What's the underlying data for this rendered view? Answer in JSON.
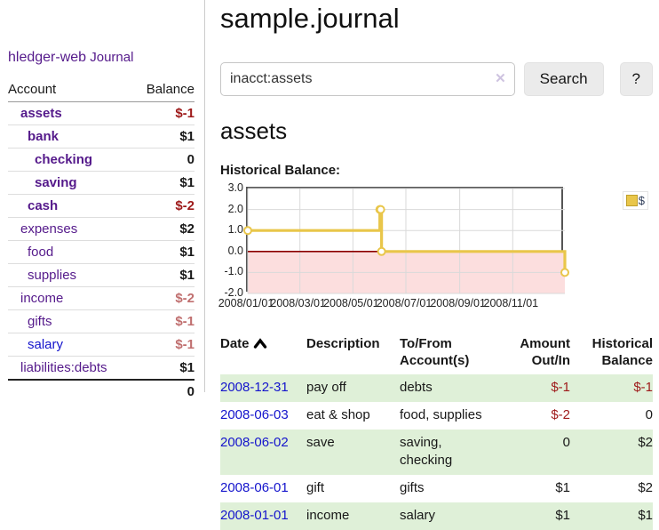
{
  "app": {
    "brand": "hledger-web"
  },
  "sidebar": {
    "nav_journal": "Journal",
    "columns": {
      "account": "Account",
      "balance": "Balance"
    },
    "accounts": [
      {
        "name": "assets",
        "level": 1,
        "bold": true,
        "balance": "$-1",
        "visited": true
      },
      {
        "name": "bank",
        "level": 2,
        "bold": true,
        "balance": "$1",
        "visited": true
      },
      {
        "name": "checking",
        "level": 3,
        "bold": true,
        "balance": "0",
        "visited": true
      },
      {
        "name": "saving",
        "level": 3,
        "bold": true,
        "balance": "$1",
        "visited": true
      },
      {
        "name": "cash",
        "level": 2,
        "bold": true,
        "balance": "$-2",
        "visited": true
      },
      {
        "name": "expenses",
        "level": 1,
        "bold": false,
        "balance": "$2",
        "visited": true
      },
      {
        "name": "food",
        "level": 2,
        "bold": false,
        "balance": "$1",
        "visited": true
      },
      {
        "name": "supplies",
        "level": 2,
        "bold": false,
        "balance": "$1",
        "visited": true
      },
      {
        "name": "income",
        "level": 1,
        "bold": false,
        "balance": "$-2",
        "visited": true
      },
      {
        "name": "gifts",
        "level": 2,
        "bold": false,
        "balance": "$-1",
        "visited": true
      },
      {
        "name": "salary",
        "level": 2,
        "bold": false,
        "balance": "$-1",
        "visited": false
      },
      {
        "name": "liabilities:debts",
        "level": 1,
        "bold": false,
        "balance": "$1",
        "visited": true
      }
    ],
    "total": "0"
  },
  "header": {
    "title": "sample.journal"
  },
  "search": {
    "query": "inacct:assets",
    "clear_icon": "✕",
    "button_label": "Search",
    "help_label": "?"
  },
  "account_page": {
    "heading": "assets",
    "chart_title": "Historical Balance:"
  },
  "chart_data": {
    "type": "line",
    "step": true,
    "title": "Historical Balance:",
    "series": [
      {
        "name": "$",
        "color": "#e9c64a",
        "points": [
          [
            "2008-01-01",
            1
          ],
          [
            "2008-06-01",
            2
          ],
          [
            "2008-06-02",
            2
          ],
          [
            "2008-06-03",
            0
          ],
          [
            "2008-12-31",
            -1
          ]
        ]
      }
    ],
    "xdomain": [
      "2008-01-01",
      "2008-12-31"
    ],
    "ylim": [
      -2,
      3
    ],
    "yticks": [
      3.0,
      2.0,
      1.0,
      0.0,
      -1.0,
      -2.0
    ],
    "xticks": [
      "2008/01/01",
      "2008/03/01",
      "2008/05/01",
      "2008/07/01",
      "2008/09/01",
      "2008/11/01"
    ],
    "grid": true,
    "negative_fill": "#fcdede",
    "zero_line_color": "#8b0000",
    "legend_position": "top-right",
    "legend": [
      {
        "label": "$",
        "color": "#e9c64a"
      }
    ]
  },
  "register": {
    "columns": [
      "Date",
      "Description",
      "To/From Account(s)",
      "Amount Out/In",
      "Historical Balance"
    ],
    "rows": [
      {
        "date": "2008-12-31",
        "description": "pay off",
        "accounts": "debts",
        "amount": "$-1",
        "balance": "$-1"
      },
      {
        "date": "2008-06-03",
        "description": "eat & shop",
        "accounts": "food, supplies",
        "amount": "$-2",
        "balance": "0"
      },
      {
        "date": "2008-06-02",
        "description": "save",
        "accounts": "saving, checking",
        "amount": "0",
        "balance": "$2"
      },
      {
        "date": "2008-06-01",
        "description": "gift",
        "accounts": "gifts",
        "amount": "$1",
        "balance": "$2"
      },
      {
        "date": "2008-01-01",
        "description": "income",
        "accounts": "salary",
        "amount": "$1",
        "balance": "$1"
      }
    ]
  },
  "colors": {
    "link_purple": "#551a8b",
    "link_blue": "#1414cc",
    "negative_dark": "#9e1a1a",
    "negative_soft": "#c06f6f",
    "stripe_green": "#dff0d8",
    "series_gold": "#e9c64a"
  }
}
